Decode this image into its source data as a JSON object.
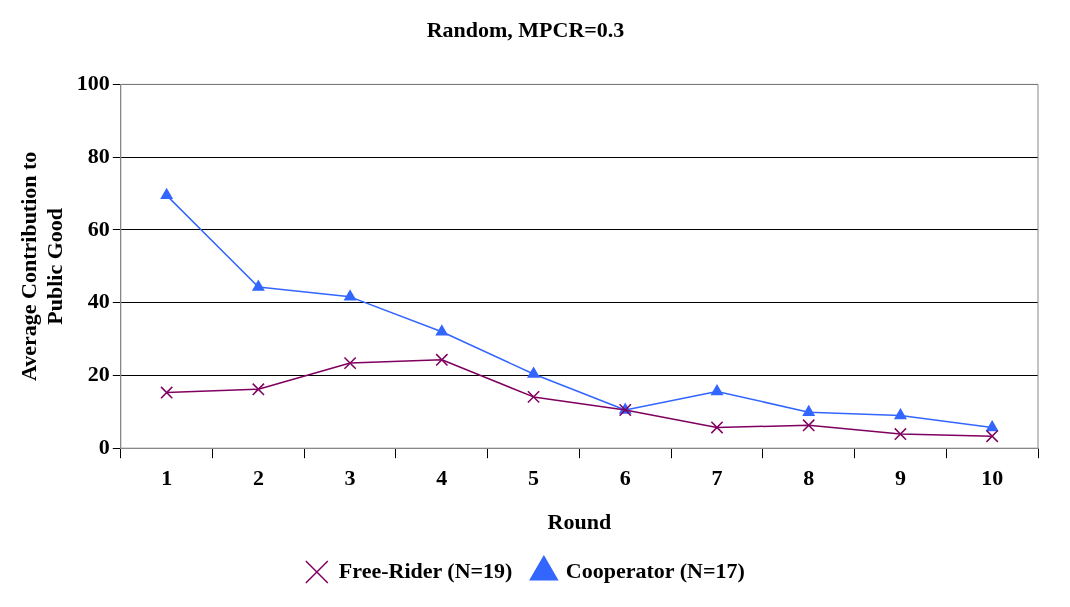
{
  "chart_data": {
    "type": "line",
    "title": "Random, MPCR=0.3",
    "xlabel": "Round",
    "ylabel": "Average Contribution to Public Good",
    "categories": [
      "1",
      "2",
      "3",
      "4",
      "5",
      "6",
      "7",
      "8",
      "9",
      "10"
    ],
    "series": [
      {
        "name": "Cooperator (N=17)",
        "color": "#3366ff",
        "marker": "triangle",
        "values": [
          69.5,
          44.3,
          41.6,
          32,
          20.4,
          10.5,
          15.6,
          9.9,
          9,
          5.7
        ]
      },
      {
        "name": "Free-Rider (N=19)",
        "color": "#800060",
        "marker": "cross",
        "values": [
          15.3,
          16.2,
          23.4,
          24.3,
          14.1,
          10.5,
          5.7,
          6.3,
          3.9,
          3.3
        ]
      }
    ],
    "ylim": [
      0,
      100
    ],
    "yticks": [
      0,
      20,
      40,
      60,
      80,
      100
    ],
    "grid": "y",
    "legend": "bottom"
  }
}
